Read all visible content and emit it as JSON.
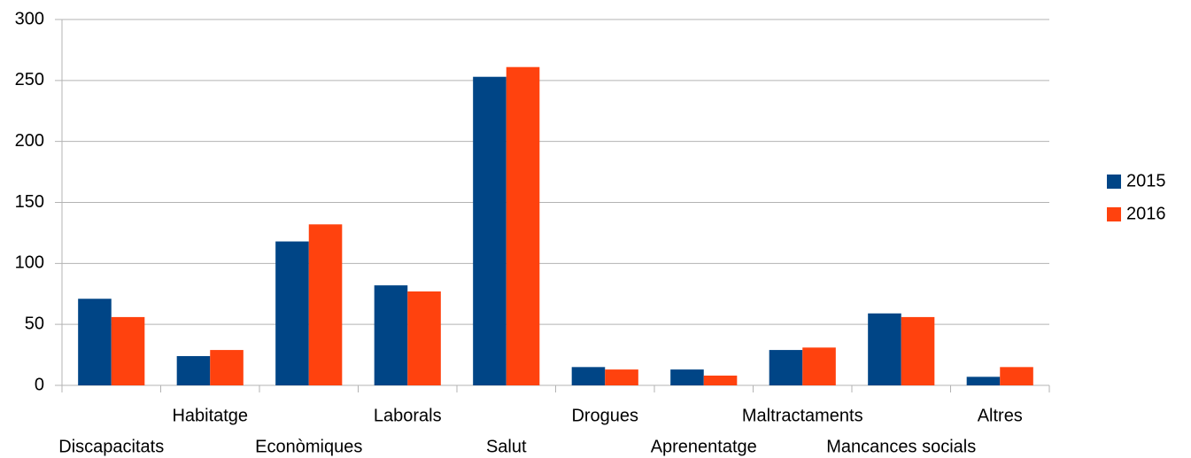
{
  "chart_data": {
    "type": "bar",
    "categories": [
      "Discapacitats",
      "Habitatge",
      "Econòmiques",
      "Laborals",
      "Salut",
      "Drogues",
      "Aprenentatge",
      "Maltractaments",
      "Mancances socials",
      "Altres"
    ],
    "series": [
      {
        "name": "2015",
        "color": "#004586",
        "values": [
          71,
          24,
          118,
          82,
          253,
          15,
          13,
          29,
          59,
          7
        ]
      },
      {
        "name": "2016",
        "color": "#ff420e",
        "values": [
          56,
          29,
          132,
          77,
          261,
          13,
          8,
          31,
          56,
          15
        ]
      }
    ],
    "ylim": [
      0,
      300
    ],
    "yticks": [
      0,
      50,
      100,
      150,
      200,
      250,
      300
    ],
    "grid": true,
    "legend": "right"
  }
}
